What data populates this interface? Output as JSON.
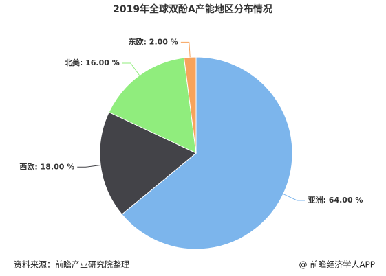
{
  "chart_data": {
    "type": "pie",
    "title": "2019年全球双酚A产能地区分布情况",
    "values": [
      64,
      18,
      16,
      2
    ],
    "value_labels": [
      "亚洲: 64.00 %",
      "西欧: 18.00 %",
      "北美: 16.00 %",
      "东欧: 2.00 %"
    ],
    "colors": [
      "#7cb5ec",
      "#434348",
      "#90ed7d",
      "#f7a35c"
    ]
  },
  "footer": {
    "source": "资料来源：前瞻产业研究院整理",
    "brand": "@ 前瞻经济学人APP"
  }
}
